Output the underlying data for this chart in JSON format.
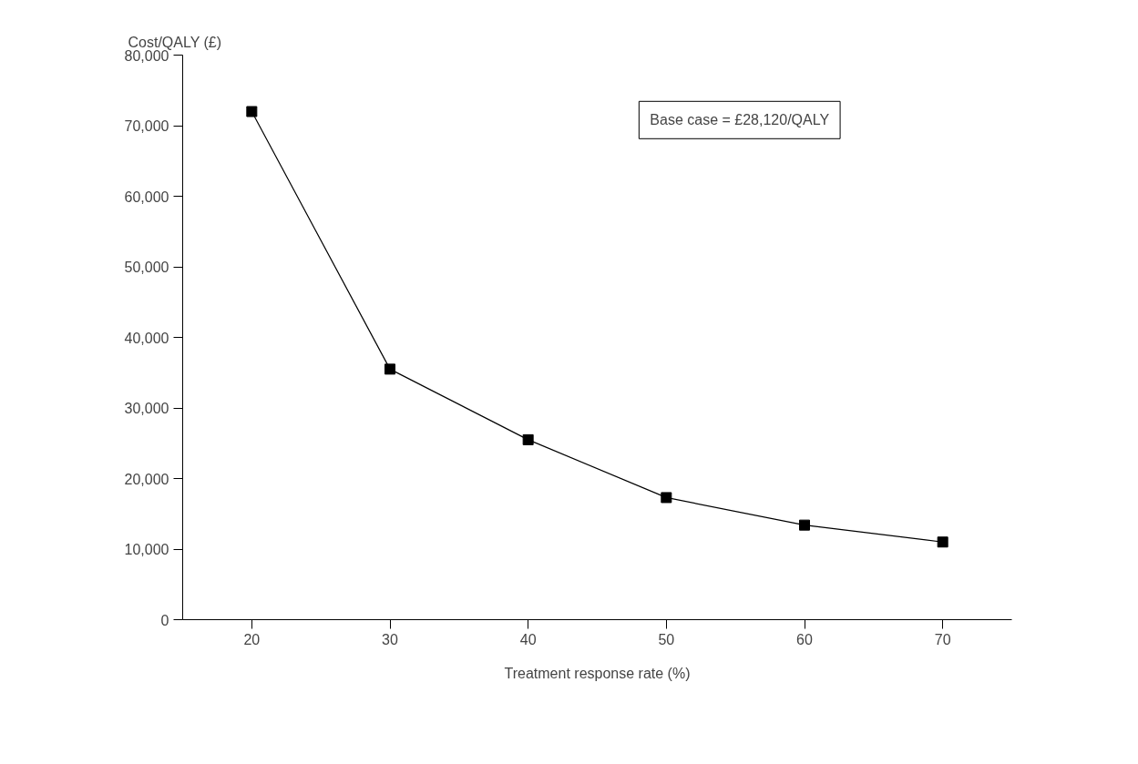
{
  "chart_data": {
    "type": "line",
    "xlabel": "Treatment response rate (%)",
    "ylabel": "Cost/QALY (£)",
    "categories": [
      "20",
      "30",
      "40",
      "50",
      "60",
      "70"
    ],
    "series": [
      {
        "color": "#000000",
        "values": [
          72000,
          35500,
          25500,
          17300,
          13400,
          11000
        ]
      }
    ],
    "ylim": [
      0,
      80000
    ],
    "yticks": [
      0,
      {
        "value": 10000,
        "label": "10,000"
      },
      {
        "value": 20000,
        "label": "20,000"
      },
      {
        "value": 30000,
        "label": "30,000"
      },
      {
        "value": 40000,
        "label": "40,000"
      },
      {
        "value": 50000,
        "label": "50,000"
      },
      {
        "value": 60000,
        "label": "60,000"
      },
      {
        "value": 70000,
        "label": "70,000"
      },
      {
        "value": 80000,
        "label": "80,000"
      }
    ],
    "annotations": [
      "Base case = £28,120/QALY"
    ],
    "marker": "square",
    "line_style": "solid",
    "grid": false
  }
}
